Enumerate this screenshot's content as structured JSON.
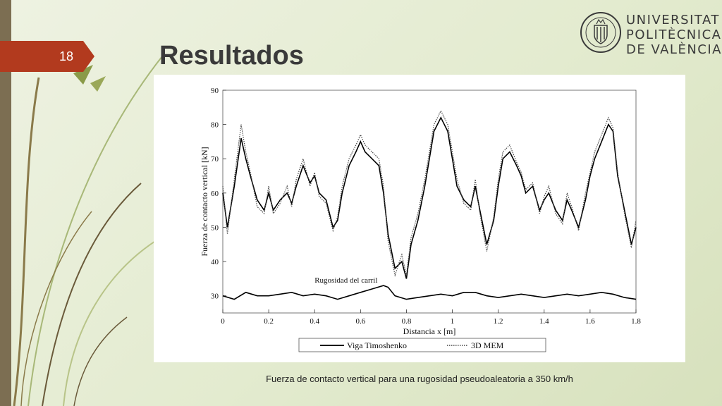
{
  "slide": {
    "number": "18",
    "title": "Resultados",
    "caption": "Fuerza de contacto vertical para una rugosidad pseudoaleatoria a 350 km/h"
  },
  "logo": {
    "name": "upv-logo",
    "line1": "UNIVERSITAT",
    "line2": "POLITÈCNICA",
    "line3": "DE VALÈNCIA"
  },
  "colors": {
    "accent": "#b23a1e",
    "sidebar": "#7c6e52",
    "background": "#e6edd4",
    "text": "#3a3a3a"
  },
  "chart_data": {
    "type": "line",
    "title": "",
    "xlabel": "Distancia x [m]",
    "ylabel": "Fuerza de contacto vertical [kN]",
    "xlim": [
      0,
      1.8
    ],
    "ylim": [
      25,
      90
    ],
    "xticks": [
      0,
      0.2,
      0.4,
      0.6,
      0.8,
      1,
      1.2,
      1.4,
      1.6,
      1.8
    ],
    "xtick_labels": [
      "0",
      "0.2",
      "0.4",
      "0.6",
      "0.8",
      "1",
      "1.2",
      "1.4",
      "1.6",
      "1.8"
    ],
    "yticks": [
      30,
      40,
      50,
      60,
      70,
      80,
      90
    ],
    "ytick_labels": [
      "30",
      "40",
      "50",
      "60",
      "70",
      "80",
      "90"
    ],
    "annotation": "Rugosidad del carril",
    "legend_position": "bottom",
    "series": [
      {
        "name": "Viga Timoshenko",
        "style": "solid",
        "color": "#000000",
        "x": [
          0,
          0.02,
          0.05,
          0.08,
          0.1,
          0.12,
          0.15,
          0.18,
          0.2,
          0.22,
          0.25,
          0.28,
          0.3,
          0.32,
          0.35,
          0.38,
          0.4,
          0.42,
          0.45,
          0.48,
          0.5,
          0.52,
          0.55,
          0.58,
          0.6,
          0.62,
          0.65,
          0.68,
          0.7,
          0.72,
          0.75,
          0.78,
          0.8,
          0.82,
          0.85,
          0.88,
          0.9,
          0.92,
          0.95,
          0.98,
          1.0,
          1.02,
          1.05,
          1.08,
          1.1,
          1.12,
          1.15,
          1.18,
          1.2,
          1.22,
          1.25,
          1.28,
          1.3,
          1.32,
          1.35,
          1.38,
          1.4,
          1.42,
          1.45,
          1.48,
          1.5,
          1.52,
          1.55,
          1.58,
          1.6,
          1.62,
          1.65,
          1.68,
          1.7,
          1.72,
          1.75,
          1.78,
          1.8
        ],
        "y": [
          60,
          50,
          62,
          76,
          70,
          65,
          58,
          55,
          60,
          55,
          58,
          60,
          57,
          62,
          68,
          63,
          65,
          60,
          58,
          50,
          52,
          60,
          68,
          72,
          75,
          72,
          70,
          68,
          60,
          48,
          38,
          40,
          35,
          45,
          52,
          62,
          70,
          78,
          82,
          78,
          70,
          62,
          58,
          56,
          62,
          55,
          45,
          52,
          62,
          70,
          72,
          68,
          65,
          60,
          62,
          55,
          58,
          60,
          55,
          52,
          58,
          55,
          50,
          58,
          65,
          70,
          75,
          80,
          78,
          65,
          55,
          45,
          50
        ]
      },
      {
        "name": "3D MEM",
        "style": "dotted",
        "color": "#444444",
        "x": [
          0,
          0.02,
          0.05,
          0.08,
          0.1,
          0.12,
          0.15,
          0.18,
          0.2,
          0.22,
          0.25,
          0.28,
          0.3,
          0.32,
          0.35,
          0.38,
          0.4,
          0.42,
          0.45,
          0.48,
          0.5,
          0.52,
          0.55,
          0.58,
          0.6,
          0.62,
          0.65,
          0.68,
          0.7,
          0.72,
          0.75,
          0.78,
          0.8,
          0.82,
          0.85,
          0.88,
          0.9,
          0.92,
          0.95,
          0.98,
          1.0,
          1.02,
          1.05,
          1.08,
          1.1,
          1.12,
          1.15,
          1.18,
          1.2,
          1.22,
          1.25,
          1.28,
          1.3,
          1.32,
          1.35,
          1.38,
          1.4,
          1.42,
          1.45,
          1.48,
          1.5,
          1.52,
          1.55,
          1.58,
          1.6,
          1.62,
          1.65,
          1.68,
          1.7,
          1.72,
          1.75,
          1.78,
          1.8
        ],
        "y": [
          62,
          48,
          64,
          80,
          72,
          66,
          56,
          54,
          62,
          54,
          57,
          62,
          56,
          64,
          70,
          62,
          66,
          59,
          57,
          49,
          53,
          62,
          70,
          74,
          77,
          74,
          72,
          70,
          62,
          46,
          36,
          42,
          36,
          47,
          54,
          64,
          72,
          80,
          84,
          80,
          72,
          64,
          57,
          55,
          64,
          54,
          43,
          53,
          64,
          72,
          74,
          69,
          66,
          61,
          63,
          54,
          59,
          62,
          54,
          51,
          60,
          56,
          49,
          60,
          66,
          72,
          77,
          82,
          79,
          66,
          54,
          44,
          52
        ]
      },
      {
        "name": "Rugosidad del carril",
        "style": "solid",
        "color": "#000000",
        "x": [
          0,
          0.05,
          0.1,
          0.15,
          0.2,
          0.25,
          0.3,
          0.35,
          0.4,
          0.45,
          0.5,
          0.55,
          0.6,
          0.65,
          0.7,
          0.72,
          0.75,
          0.8,
          0.85,
          0.9,
          0.95,
          1.0,
          1.05,
          1.1,
          1.15,
          1.2,
          1.25,
          1.3,
          1.35,
          1.4,
          1.45,
          1.5,
          1.55,
          1.6,
          1.65,
          1.7,
          1.75,
          1.8
        ],
        "y": [
          30,
          29,
          31,
          30,
          30,
          30.5,
          31,
          30,
          30.5,
          30,
          29,
          30,
          31,
          32,
          33,
          32.5,
          30,
          29,
          29.5,
          30,
          30.5,
          30,
          31,
          31,
          30,
          29.5,
          30,
          30.5,
          30,
          29.5,
          30,
          30.5,
          30,
          30.5,
          31,
          30.5,
          29.5,
          29
        ]
      }
    ]
  }
}
